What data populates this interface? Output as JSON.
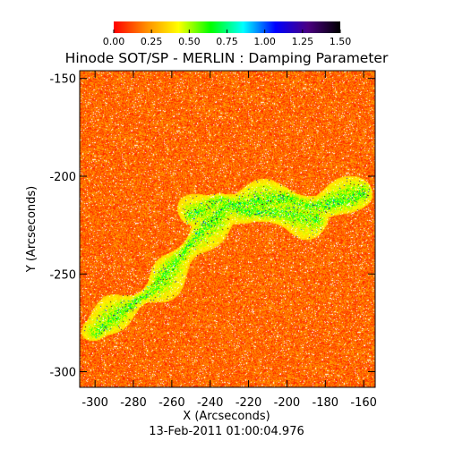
{
  "chart_data": {
    "type": "heatmap",
    "title": "Hinode SOT/SP - MERLIN : Damping Parameter",
    "xlabel": "X (Arcseconds)",
    "ylabel": "Y (Arcseconds)",
    "footer": "13-Feb-2011 01:00:04.976",
    "xlim": [
      -308,
      -154
    ],
    "ylim": [
      -308,
      -146
    ],
    "x_ticks": [
      -300,
      -280,
      -260,
      -240,
      -220,
      -200,
      -180,
      -160
    ],
    "x_tick_labels": [
      "-300",
      "-280",
      "-260",
      "-240",
      "-220",
      "-200",
      "-180",
      "-160"
    ],
    "y_ticks": [
      -300,
      -250,
      -200,
      -150
    ],
    "y_tick_labels": [
      "-300",
      "-250",
      "-200",
      "-150"
    ],
    "colorbar": {
      "range": [
        0.0,
        1.5
      ],
      "ticks": [
        0.0,
        0.25,
        0.5,
        0.75,
        1.0,
        1.25,
        1.5
      ],
      "tick_labels": [
        "0.00",
        "0.25",
        "0.50",
        "0.75",
        "1.00",
        "1.25",
        "1.50"
      ],
      "colors": [
        "#ff0000",
        "#ff8c00",
        "#ffff00",
        "#00ff00",
        "#00ffff",
        "#0000ff",
        "#4b0082",
        "#000000"
      ]
    },
    "background_value": 0.05,
    "features": [
      {
        "name": "active-region-band",
        "points": [
          [
            -300,
            -280
          ],
          [
            -285,
            -268
          ],
          [
            -270,
            -258
          ],
          [
            -258,
            -243
          ],
          [
            -245,
            -228
          ],
          [
            -232,
            -215
          ],
          [
            -215,
            -213
          ],
          [
            -200,
            -211
          ],
          [
            -185,
            -216
          ],
          [
            -170,
            -212
          ],
          [
            -160,
            -208
          ]
        ],
        "value": 0.45
      },
      {
        "name": "upper-lobe",
        "points": [
          [
            -250,
            -220
          ],
          [
            -235,
            -212
          ],
          [
            -220,
            -218
          ],
          [
            -200,
            -218
          ],
          [
            -185,
            -222
          ]
        ],
        "value": 0.5
      }
    ]
  }
}
